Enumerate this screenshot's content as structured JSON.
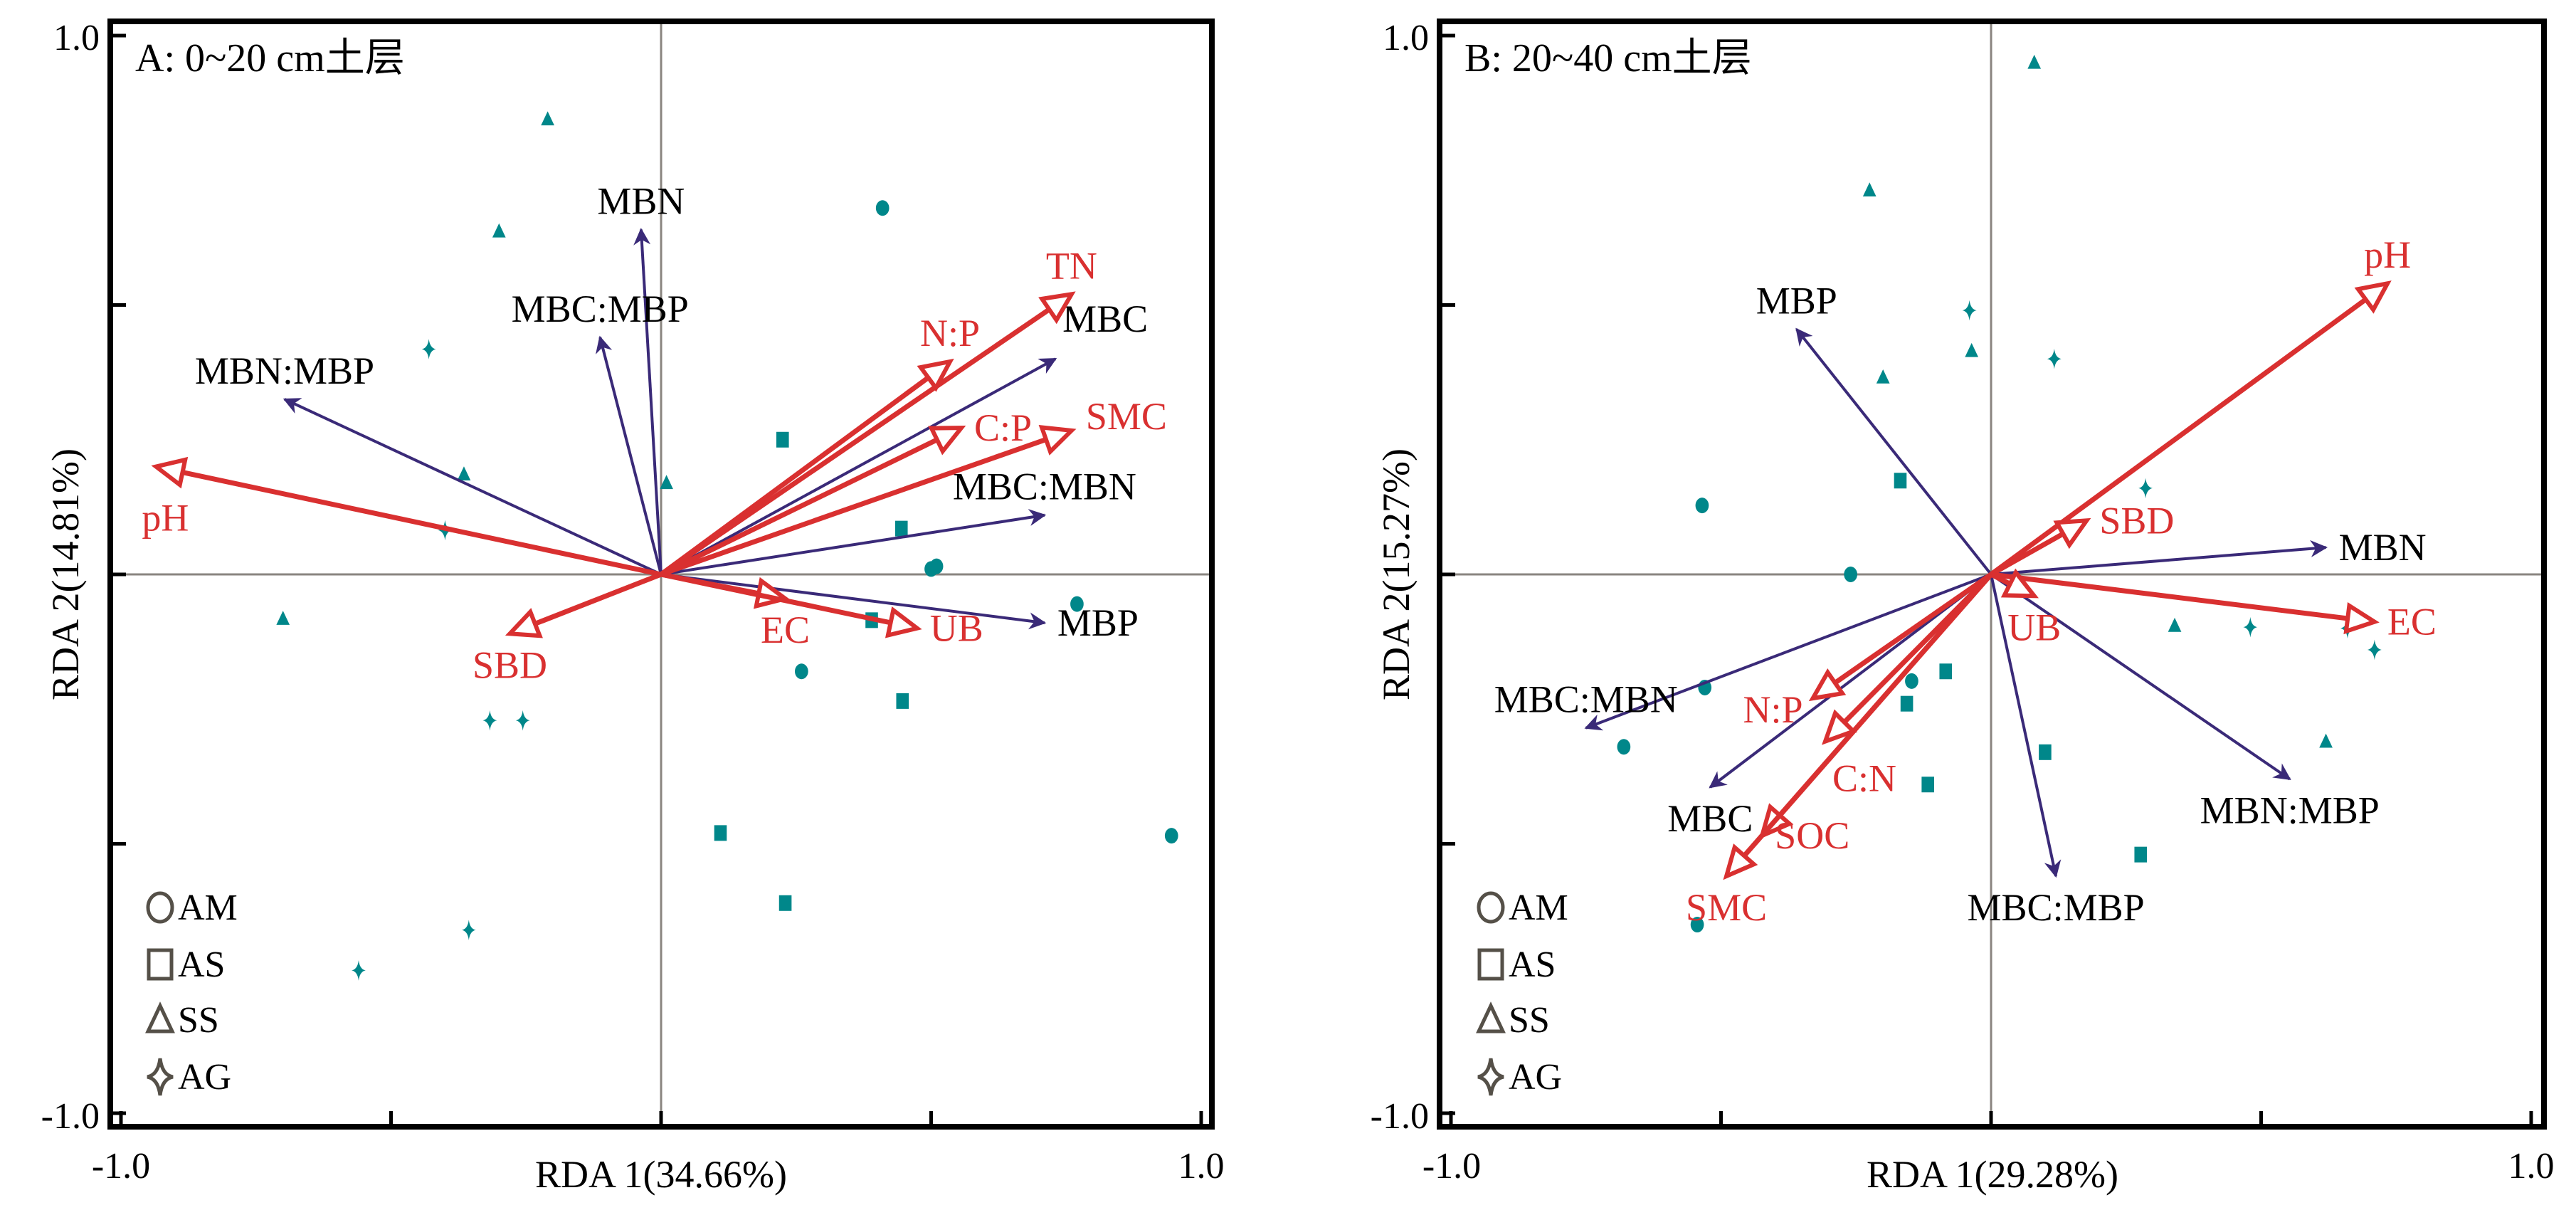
{
  "colors": {
    "environment_arrow": "#d93030",
    "species_arrow": "#3a2a78",
    "sample_marker": "#00878a",
    "zero_line": "#8a8580",
    "legend_symbol": "#555048"
  },
  "chart_data": [
    {
      "type": "scatter",
      "subtype": "RDA biplot",
      "title": "A: 0~20 cm土层",
      "xlabel": "RDA 1(34.66%)",
      "ylabel": "RDA 2(14.81%)",
      "xlim": [
        -1.0,
        1.0
      ],
      "ylim": [
        -1.0,
        1.0
      ],
      "x_tick_labels": [
        "-1.0",
        "1.0"
      ],
      "y_tick_labels": [
        "1.0",
        "-1.0"
      ],
      "grid": false,
      "legend_position": "bottom-left",
      "legend": [
        {
          "label": "AM",
          "symbol": "circle"
        },
        {
          "label": "AS",
          "symbol": "square"
        },
        {
          "label": "SS",
          "symbol": "triangle"
        },
        {
          "label": "AG",
          "symbol": "star4"
        }
      ],
      "environment_vectors": [
        {
          "name": "pH",
          "x": -0.935,
          "y": 0.2,
          "label_pos": "below-left"
        },
        {
          "name": "SBD",
          "x": -0.28,
          "y": -0.11,
          "label_pos": "below"
        },
        {
          "name": "TN",
          "x": 0.76,
          "y": 0.52,
          "label_pos": "above"
        },
        {
          "name": "N:P",
          "x": 0.535,
          "y": 0.395,
          "label_pos": "above"
        },
        {
          "name": "C:P",
          "x": 0.556,
          "y": 0.272,
          "label_pos": "right"
        },
        {
          "name": "SMC",
          "x": 0.76,
          "y": 0.267,
          "label_pos": "right-up"
        },
        {
          "name": "EC",
          "x": 0.23,
          "y": -0.045,
          "label_pos": "below"
        },
        {
          "name": "UB",
          "x": 0.474,
          "y": -0.1,
          "label_pos": "right"
        }
      ],
      "species_vectors": [
        {
          "name": "MBN",
          "x": -0.037,
          "y": 0.64,
          "label_pos": "above"
        },
        {
          "name": "MBC:MBP",
          "x": -0.113,
          "y": 0.44,
          "label_pos": "above"
        },
        {
          "name": "MBN:MBP",
          "x": -0.697,
          "y": 0.325,
          "label_pos": "above"
        },
        {
          "name": "MBC",
          "x": 0.73,
          "y": 0.4,
          "label_pos": "above-right"
        },
        {
          "name": "MBC:MBN",
          "x": 0.71,
          "y": 0.11,
          "label_pos": "above"
        },
        {
          "name": "MBP",
          "x": 0.71,
          "y": -0.09,
          "label_pos": "right"
        }
      ],
      "samples": [
        {
          "group": "SS",
          "x": -0.21,
          "y": 0.845
        },
        {
          "group": "SS",
          "x": -0.3,
          "y": 0.637
        },
        {
          "group": "AG",
          "x": -0.43,
          "y": 0.418
        },
        {
          "group": "SS",
          "x": -0.365,
          "y": 0.186
        },
        {
          "group": "AG",
          "x": -0.4,
          "y": 0.082
        },
        {
          "group": "SS",
          "x": -0.7,
          "y": -0.082
        },
        {
          "group": "AG",
          "x": -0.317,
          "y": -0.271
        },
        {
          "group": "AG",
          "x": -0.256,
          "y": -0.271
        },
        {
          "group": "AG",
          "x": -0.356,
          "y": -0.66
        },
        {
          "group": "AG",
          "x": -0.56,
          "y": -0.735
        },
        {
          "group": "SS",
          "x": 0.01,
          "y": 0.17
        },
        {
          "group": "AM",
          "x": 0.41,
          "y": 0.68
        },
        {
          "group": "AS",
          "x": 0.225,
          "y": 0.25
        },
        {
          "group": "AS",
          "x": 0.445,
          "y": 0.085
        },
        {
          "group": "AM",
          "x": 0.5,
          "y": 0.01
        },
        {
          "group": "AM",
          "x": 0.51,
          "y": 0.015
        },
        {
          "group": "AS",
          "x": 0.39,
          "y": -0.085
        },
        {
          "group": "AM",
          "x": 0.77,
          "y": -0.055
        },
        {
          "group": "AM",
          "x": 0.26,
          "y": -0.18
        },
        {
          "group": "AS",
          "x": 0.447,
          "y": -0.235
        },
        {
          "group": "AS",
          "x": 0.11,
          "y": -0.48
        },
        {
          "group": "AS",
          "x": 0.23,
          "y": -0.61
        },
        {
          "group": "AM",
          "x": 0.945,
          "y": -0.485
        }
      ]
    },
    {
      "type": "scatter",
      "subtype": "RDA biplot",
      "title": "B: 20~40 cm土层",
      "xlabel": "RDA 1(29.28%)",
      "ylabel": "RDA 2(15.27%)",
      "xlim": [
        -1.0,
        1.0
      ],
      "ylim": [
        -1.0,
        1.0
      ],
      "x_tick_labels": [
        "-1.0",
        "1.0"
      ],
      "y_tick_labels": [
        "1.0",
        "-1.0"
      ],
      "grid": false,
      "legend_position": "bottom-left",
      "legend": [
        {
          "label": "AM",
          "symbol": "circle"
        },
        {
          "label": "AS",
          "symbol": "square"
        },
        {
          "label": "SS",
          "symbol": "triangle"
        },
        {
          "label": "AG",
          "symbol": "star4"
        }
      ],
      "environment_vectors": [
        {
          "name": "pH",
          "x": 0.734,
          "y": 0.54,
          "label_pos": "above"
        },
        {
          "name": "SBD",
          "x": 0.177,
          "y": 0.1,
          "label_pos": "right"
        },
        {
          "name": "EC",
          "x": 0.71,
          "y": -0.088,
          "label_pos": "right"
        },
        {
          "name": "UB",
          "x": 0.08,
          "y": -0.04,
          "label_pos": "below"
        },
        {
          "name": "N:P",
          "x": -0.33,
          "y": -0.23,
          "label_pos": "left"
        },
        {
          "name": "C:N",
          "x": -0.307,
          "y": -0.31,
          "label_pos": "below-right"
        },
        {
          "name": "SOC",
          "x": -0.424,
          "y": -0.485,
          "label_pos": "right"
        },
        {
          "name": "SMC",
          "x": -0.49,
          "y": -0.56,
          "label_pos": "below"
        }
      ],
      "species_vectors": [
        {
          "name": "MBP",
          "x": -0.36,
          "y": 0.455,
          "label_pos": "above"
        },
        {
          "name": "MBN",
          "x": 0.62,
          "y": 0.05,
          "label_pos": "right"
        },
        {
          "name": "MBC:MBN",
          "x": -0.75,
          "y": -0.285,
          "label_pos": "above"
        },
        {
          "name": "MBC",
          "x": -0.52,
          "y": -0.395,
          "label_pos": "below"
        },
        {
          "name": "MBC:MBP",
          "x": 0.12,
          "y": -0.56,
          "label_pos": "below"
        },
        {
          "name": "MBN:MBP",
          "x": 0.553,
          "y": -0.38,
          "label_pos": "below"
        }
      ],
      "samples": [
        {
          "group": "SS",
          "x": 0.08,
          "y": 0.95
        },
        {
          "group": "SS",
          "x": -0.225,
          "y": 0.713
        },
        {
          "group": "AG",
          "x": -0.04,
          "y": 0.49
        },
        {
          "group": "SS",
          "x": -0.036,
          "y": 0.415
        },
        {
          "group": "AG",
          "x": 0.117,
          "y": 0.4
        },
        {
          "group": "SS",
          "x": -0.2,
          "y": 0.366
        },
        {
          "group": "AS",
          "x": -0.168,
          "y": 0.174
        },
        {
          "group": "AG",
          "x": 0.286,
          "y": 0.16
        },
        {
          "group": "AM",
          "x": -0.535,
          "y": 0.128
        },
        {
          "group": "AM",
          "x": -0.26,
          "y": 0.0
        },
        {
          "group": "SS",
          "x": 0.34,
          "y": -0.095
        },
        {
          "group": "AG",
          "x": 0.48,
          "y": -0.098
        },
        {
          "group": "AG",
          "x": 0.66,
          "y": -0.1
        },
        {
          "group": "AG",
          "x": 0.71,
          "y": -0.14
        },
        {
          "group": "AM",
          "x": -0.53,
          "y": -0.21
        },
        {
          "group": "AS",
          "x": -0.084,
          "y": -0.18
        },
        {
          "group": "AM",
          "x": -0.147,
          "y": -0.198
        },
        {
          "group": "AS",
          "x": -0.156,
          "y": -0.24
        },
        {
          "group": "AM",
          "x": -0.68,
          "y": -0.32
        },
        {
          "group": "AS",
          "x": 0.1,
          "y": -0.33
        },
        {
          "group": "SS",
          "x": 0.62,
          "y": -0.31
        },
        {
          "group": "AS",
          "x": -0.117,
          "y": -0.39
        },
        {
          "group": "AS",
          "x": 0.277,
          "y": -0.52
        },
        {
          "group": "AM",
          "x": -0.544,
          "y": -0.65
        }
      ]
    }
  ]
}
